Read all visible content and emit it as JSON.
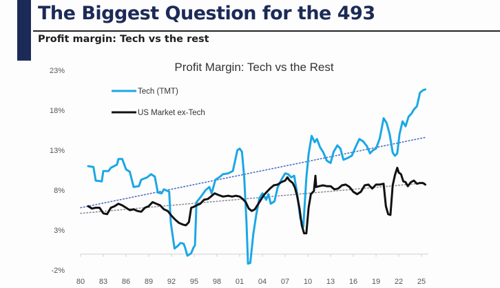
{
  "header": {
    "title": "The Biggest Question for the 493",
    "subtitle": "Profit margin: Tech vs the rest"
  },
  "colors": {
    "brand_navy": "#1c2a57",
    "tech": "#1aa7e6",
    "market": "#111111",
    "tech_trend": "#4a6bc4",
    "market_trend": "#8a8a9a"
  },
  "chart_data": {
    "type": "line",
    "title": "Profit Margin: Tech vs the Rest",
    "xlabel": "",
    "ylabel": "",
    "xlim": [
      1980,
      2026
    ],
    "ylim": [
      -2,
      23
    ],
    "y_ticks": [
      "-2%",
      "3%",
      "8%",
      "13%",
      "18%",
      "23%"
    ],
    "y_tick_values": [
      -2,
      3,
      8,
      13,
      18,
      23
    ],
    "x_ticks": [
      "80",
      "83",
      "86",
      "89",
      "92",
      "95",
      "98",
      "01",
      "04",
      "07",
      "10",
      "13",
      "16",
      "19",
      "22",
      "25"
    ],
    "x_tick_values": [
      1980,
      1983,
      1986,
      1989,
      1992,
      1995,
      1998,
      2001,
      2004,
      2007,
      2010,
      2013,
      2016,
      2019,
      2022,
      2025
    ],
    "baseline": 0,
    "grid": false,
    "legend": {
      "placement": "top-left",
      "entries": [
        "Tech (TMT)",
        "US Market ex-Tech"
      ]
    },
    "series": [
      {
        "name": "Tech (TMT)",
        "color": "#1aa7e6",
        "x": [
          1981.0,
          1981.7,
          1982.0,
          1982.8,
          1983.0,
          1983.7,
          1984.0,
          1984.8,
          1985.0,
          1985.5,
          1986.0,
          1986.5,
          1987.0,
          1987.7,
          1988.0,
          1988.8,
          1989.3,
          1989.8,
          1990.2,
          1990.7,
          1991.0,
          1991.7,
          1991.9,
          1992.4,
          1992.8,
          1993.2,
          1993.6,
          1993.8,
          1994.1,
          1994.6,
          1994.9,
          1995.1,
          1995.3,
          1995.9,
          1996.5,
          1997.0,
          1997.3,
          1997.8,
          1998.3,
          1998.8,
          1999.5,
          2000.1,
          2000.7,
          2001.0,
          2001.3,
          2001.6,
          2001.9,
          2002.1,
          2002.4,
          2002.8,
          2003.2,
          2003.6,
          2004.0,
          2004.5,
          2004.8,
          2005.1,
          2005.6,
          2006.0,
          2006.5,
          2007.0,
          2007.4,
          2007.8,
          2008.2,
          2008.6,
          2009.0,
          2009.4,
          2009.8,
          2010.1,
          2010.5,
          2010.9,
          2011.2,
          2011.6,
          2012.0,
          2012.5,
          2013.0,
          2013.4,
          2013.9,
          2014.3,
          2014.7,
          2015.2,
          2015.8,
          2016.3,
          2016.8,
          2017.3,
          2017.8,
          2018.2,
          2018.6,
          2019.0,
          2019.5,
          2020.0,
          2020.4,
          2020.8,
          2021.2,
          2021.5,
          2021.8,
          2022.1,
          2022.5,
          2022.9,
          2023.3,
          2023.7,
          2024.0,
          2024.4,
          2024.8,
          2025.2,
          2025.5
        ],
        "values": [
          11.0,
          10.9,
          9.2,
          9.1,
          10.4,
          10.4,
          10.8,
          11.2,
          11.9,
          11.9,
          10.6,
          10.3,
          8.4,
          8.5,
          9.3,
          9.6,
          10.0,
          9.7,
          7.7,
          7.6,
          8.1,
          7.8,
          4.0,
          0.7,
          1.0,
          1.4,
          1.3,
          0.8,
          -0.2,
          0.1,
          0.8,
          1.1,
          6.5,
          7.2,
          8.0,
          8.4,
          7.6,
          9.3,
          9.6,
          10.0,
          10.1,
          10.4,
          13.0,
          13.2,
          12.8,
          9.6,
          4.0,
          -1.2,
          -1.1,
          2.5,
          5.0,
          7.0,
          7.6,
          6.8,
          7.5,
          6.3,
          6.6,
          8.3,
          9.3,
          10.1,
          10.0,
          9.6,
          9.8,
          7.5,
          4.5,
          3.4,
          9.5,
          12.5,
          14.8,
          14.0,
          14.4,
          13.4,
          12.8,
          11.7,
          11.4,
          12.8,
          13.6,
          13.2,
          11.8,
          12.0,
          12.3,
          13.4,
          14.4,
          14.1,
          13.5,
          12.6,
          13.0,
          13.2,
          14.5,
          17.0,
          16.4,
          15.0,
          12.7,
          12.3,
          12.6,
          15.0,
          16.6,
          16.0,
          17.2,
          17.6,
          18.1,
          18.5,
          20.2,
          20.5,
          20.6
        ]
      },
      {
        "name": "US Market ex-Tech",
        "color": "#111111",
        "x": [
          1981.0,
          1981.5,
          1982.0,
          1982.5,
          1983.0,
          1983.5,
          1984.0,
          1984.5,
          1985.0,
          1985.5,
          1986.0,
          1986.5,
          1987.0,
          1987.5,
          1988.0,
          1988.5,
          1989.0,
          1989.5,
          1990.0,
          1990.5,
          1991.0,
          1991.5,
          1992.0,
          1992.5,
          1993.0,
          1993.5,
          1993.9,
          1994.3,
          1994.6,
          1994.9,
          1995.3,
          1995.8,
          1996.3,
          1996.8,
          1997.2,
          1997.7,
          1998.2,
          1998.8,
          1999.5,
          2000.0,
          2000.5,
          2001.0,
          2001.4,
          2001.8,
          2002.2,
          2002.6,
          2003.0,
          2003.4,
          2003.8,
          2004.2,
          2004.6,
          2005.0,
          2005.5,
          2006.0,
          2006.5,
          2007.0,
          2007.3,
          2007.6,
          2008.0,
          2008.3,
          2008.6,
          2008.9,
          2009.2,
          2009.5,
          2009.8,
          2010.1,
          2010.4,
          2010.8,
          2011.0,
          2011.1,
          2011.5,
          2012.0,
          2012.5,
          2013.0,
          2013.5,
          2014.0,
          2014.5,
          2015.0,
          2015.5,
          2016.0,
          2016.5,
          2017.0,
          2017.5,
          2018.0,
          2018.5,
          2019.0,
          2019.5,
          2020.0,
          2020.3,
          2020.6,
          2020.9,
          2021.2,
          2021.5,
          2021.8,
          2022.0,
          2022.3,
          2022.6,
          2022.9,
          2023.2,
          2023.6,
          2024.0,
          2024.4,
          2024.8,
          2025.2,
          2025.5
        ],
        "values": [
          6.0,
          5.7,
          5.8,
          5.8,
          5.1,
          5.0,
          5.8,
          6.0,
          6.3,
          6.1,
          5.8,
          5.5,
          5.6,
          5.4,
          5.3,
          5.8,
          6.0,
          6.5,
          6.3,
          6.1,
          5.6,
          5.4,
          4.8,
          4.3,
          3.9,
          3.7,
          3.6,
          4.0,
          5.8,
          5.9,
          6.1,
          6.3,
          6.8,
          6.9,
          7.2,
          7.6,
          7.4,
          7.2,
          7.3,
          7.2,
          7.3,
          7.2,
          6.9,
          6.5,
          5.7,
          5.4,
          5.6,
          6.2,
          6.8,
          7.4,
          7.8,
          8.2,
          8.6,
          8.7,
          9.0,
          9.2,
          9.6,
          9.2,
          8.9,
          8.3,
          7.2,
          5.7,
          3.6,
          2.6,
          2.6,
          5.8,
          7.5,
          7.9,
          9.8,
          8.4,
          8.5,
          8.6,
          8.5,
          8.5,
          8.1,
          8.2,
          8.6,
          8.7,
          8.4,
          7.8,
          7.5,
          7.8,
          8.6,
          8.7,
          8.2,
          8.7,
          8.7,
          8.8,
          6.0,
          5.0,
          4.9,
          8.6,
          9.9,
          10.8,
          10.2,
          10.0,
          9.1,
          9.0,
          8.5,
          9.0,
          9.2,
          8.8,
          8.9,
          8.9,
          8.7
        ]
      }
    ],
    "trendlines": [
      {
        "name": "Tech (TMT) trend",
        "style": "dotted",
        "color": "#4a6bc4",
        "x": [
          1980,
          2025.5
        ],
        "values": [
          5.8,
          14.6
        ]
      },
      {
        "name": "US Market ex-Tech trend",
        "style": "dotted",
        "color": "#8a8a9a",
        "x": [
          1980,
          2025.5
        ],
        "values": [
          5.1,
          8.9
        ]
      }
    ]
  }
}
